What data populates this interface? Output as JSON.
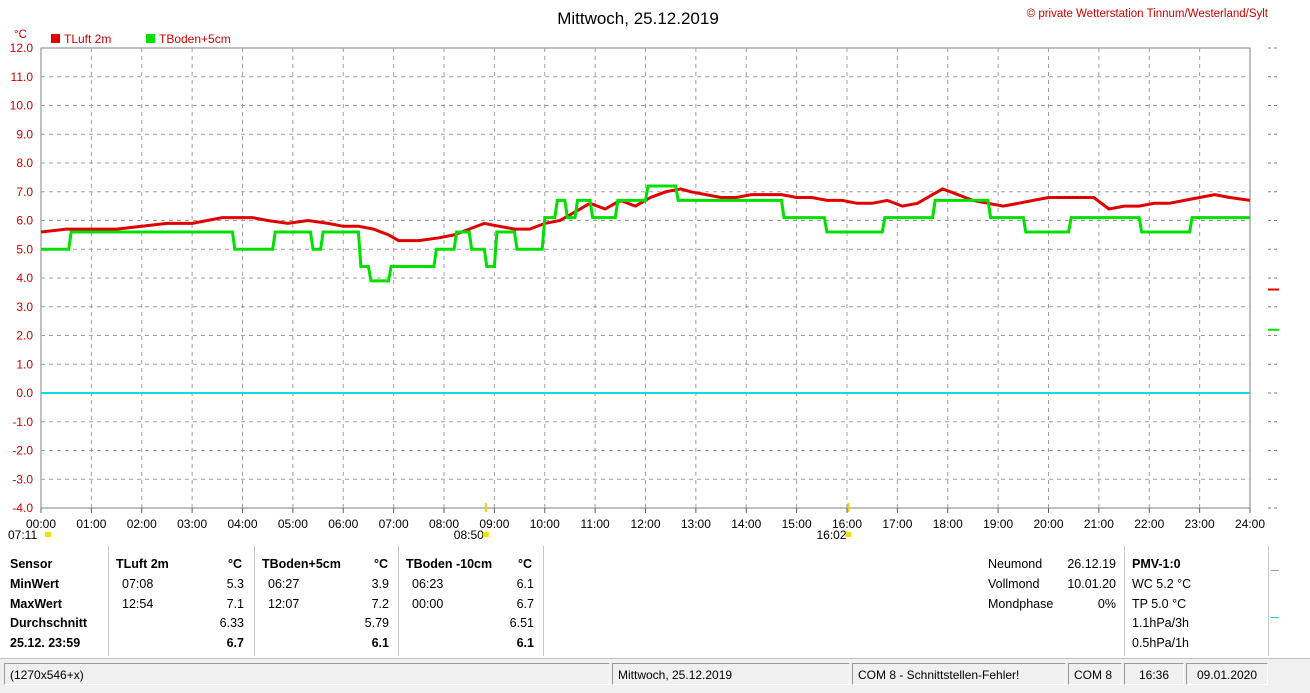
{
  "header": {
    "title": "Mittwoch, 25.12.2019",
    "copyright": "© private Wetterstation Tinnum/Westerland/Sylt",
    "unit": "°C"
  },
  "chart_data": {
    "type": "line",
    "title": "Mittwoch, 25.12.2019",
    "ylabel": "°C",
    "ylim": [
      -4.0,
      12.0
    ],
    "yticks": [
      "12.0",
      "11.0",
      "10.0",
      "9.0",
      "8.0",
      "7.0",
      "6.0",
      "5.0",
      "4.0",
      "3.0",
      "2.0",
      "1.0",
      "0.0",
      "-1.0",
      "-2.0",
      "-3.0",
      "-4.0"
    ],
    "xlim": [
      0,
      24
    ],
    "xticks": [
      "00:00",
      "01:00",
      "02:00",
      "03:00",
      "04:00",
      "05:00",
      "06:00",
      "07:00",
      "08:00",
      "09:00",
      "10:00",
      "11:00",
      "12:00",
      "13:00",
      "14:00",
      "15:00",
      "16:00",
      "17:00",
      "18:00",
      "19:00",
      "20:00",
      "21:00",
      "22:00",
      "23:00",
      "24:00"
    ],
    "grid": true,
    "legend": "top-left",
    "sun_markers": [
      {
        "label": "07:11",
        "hour": 0.0
      },
      {
        "label": "08:50",
        "hour": 8.83
      },
      {
        "label": "16:02",
        "hour": 16.03
      }
    ],
    "series": [
      {
        "name": "TLuft 2m",
        "color": "#e00000",
        "x": [
          0,
          0.5,
          1,
          1.5,
          2,
          2.5,
          3,
          3.3,
          3.6,
          3.9,
          4.2,
          4.5,
          4.9,
          5.3,
          5.7,
          6,
          6.3,
          6.6,
          6.9,
          7.1,
          7.5,
          7.9,
          8.2,
          8.5,
          8.8,
          9.1,
          9.4,
          9.7,
          10,
          10.3,
          10.6,
          10.9,
          11.2,
          11.5,
          11.8,
          12.1,
          12.4,
          12.7,
          12.9,
          13.2,
          13.5,
          13.8,
          14.1,
          14.4,
          14.7,
          15,
          15.3,
          15.6,
          15.9,
          16.2,
          16.5,
          16.8,
          17.1,
          17.4,
          17.7,
          17.9,
          18.2,
          18.5,
          18.8,
          19.1,
          19.4,
          19.7,
          20,
          20.3,
          20.6,
          20.9,
          21.2,
          21.5,
          21.8,
          22.1,
          22.4,
          22.7,
          23,
          23.3,
          23.6,
          24
        ],
        "y": [
          5.6,
          5.7,
          5.7,
          5.7,
          5.8,
          5.9,
          5.9,
          6.0,
          6.1,
          6.1,
          6.1,
          6.0,
          5.9,
          6.0,
          5.9,
          5.8,
          5.8,
          5.7,
          5.5,
          5.3,
          5.3,
          5.4,
          5.5,
          5.7,
          5.9,
          5.8,
          5.7,
          5.7,
          5.9,
          6.0,
          6.3,
          6.6,
          6.4,
          6.7,
          6.5,
          6.8,
          7.0,
          7.1,
          7.0,
          6.9,
          6.8,
          6.8,
          6.9,
          6.9,
          6.9,
          6.8,
          6.8,
          6.7,
          6.7,
          6.6,
          6.6,
          6.7,
          6.5,
          6.6,
          6.9,
          7.1,
          6.9,
          6.7,
          6.6,
          6.5,
          6.6,
          6.7,
          6.8,
          6.8,
          6.8,
          6.8,
          6.4,
          6.5,
          6.5,
          6.6,
          6.6,
          6.7,
          6.8,
          6.9,
          6.8,
          6.7
        ]
      },
      {
        "name": "TBoden+5cm",
        "color": "#00e000",
        "x": [
          0,
          0.55,
          0.6,
          3.8,
          3.85,
          4.6,
          4.65,
          5.35,
          5.4,
          5.55,
          5.6,
          6.3,
          6.35,
          6.5,
          6.55,
          6.9,
          6.95,
          7.8,
          7.85,
          8.2,
          8.25,
          8.5,
          8.55,
          8.8,
          8.85,
          9.0,
          9.05,
          9.4,
          9.45,
          9.95,
          10.0,
          10.2,
          10.25,
          10.4,
          10.45,
          10.6,
          10.65,
          10.9,
          10.95,
          11.4,
          11.45,
          12.0,
          12.05,
          12.6,
          12.65,
          13.0,
          13.05,
          14.7,
          14.75,
          15.55,
          15.6,
          16.7,
          16.75,
          17.7,
          17.75,
          18.8,
          18.85,
          19.5,
          19.55,
          20.4,
          20.45,
          21.8,
          21.85,
          22.8,
          22.85,
          24
        ],
        "y": [
          5.0,
          5.0,
          5.6,
          5.6,
          5.0,
          5.0,
          5.6,
          5.6,
          5.0,
          5.0,
          5.6,
          5.6,
          4.4,
          4.4,
          3.9,
          3.9,
          4.4,
          4.4,
          5.0,
          5.0,
          5.6,
          5.6,
          5.0,
          5.0,
          4.4,
          4.4,
          5.6,
          5.6,
          5.0,
          5.0,
          6.1,
          6.1,
          6.7,
          6.7,
          6.1,
          6.1,
          6.7,
          6.7,
          6.1,
          6.1,
          6.7,
          6.7,
          7.2,
          7.2,
          6.7,
          6.7,
          6.7,
          6.7,
          6.1,
          6.1,
          5.6,
          5.6,
          6.1,
          6.1,
          6.7,
          6.7,
          6.1,
          6.1,
          5.6,
          5.6,
          6.1,
          6.1,
          5.6,
          5.6,
          6.1,
          6.1
        ]
      },
      {
        "name": "0 °C",
        "color": "#00e0e0",
        "x": [
          0,
          24
        ],
        "y": [
          0.0,
          0.0
        ]
      }
    ]
  },
  "table": {
    "labels": [
      "Sensor",
      "MinWert",
      "MaxWert",
      "Durchschnitt",
      "25.12. 23:59"
    ],
    "columns": [
      {
        "name": "TLuft 2m",
        "unit": "°C",
        "min_time": "07:08",
        "min": "5.3",
        "max_time": "12:54",
        "max": "7.1",
        "avg": "6.33",
        "last": "6.7"
      },
      {
        "name": "TBoden+5cm",
        "unit": "°C",
        "min_time": "06:27",
        "min": "3.9",
        "max_time": "12:07",
        "max": "7.2",
        "avg": "5.79",
        "last": "6.1"
      },
      {
        "name": "TBoden -10cm",
        "unit": "°C",
        "min_time": "06:23",
        "min": "6.1",
        "max_time": "00:00",
        "max": "6.7",
        "avg": "6.51",
        "last": "6.1"
      }
    ]
  },
  "moon": {
    "neumond_label": "Neumond",
    "neumond": "26.12.19",
    "vollmond_label": "Vollmond",
    "vollmond": "10.01.20",
    "phase_label": "Mondphase",
    "phase": "0%"
  },
  "pmv": {
    "title": "PMV-1:0",
    "wc": "WC 5.2 °C",
    "tp": "TP 5.0 °C",
    "p3h": "1.1hPa/3h",
    "p1h": "0.5hPa/1h"
  },
  "statusbar": {
    "size": "(1270x546+x)",
    "date": "Mittwoch, 25.12.2019",
    "com_error": "COM 8 - Schnittstellen-Fehler!",
    "com": "COM 8",
    "time": "16:36",
    "today": "09.01.2020"
  }
}
